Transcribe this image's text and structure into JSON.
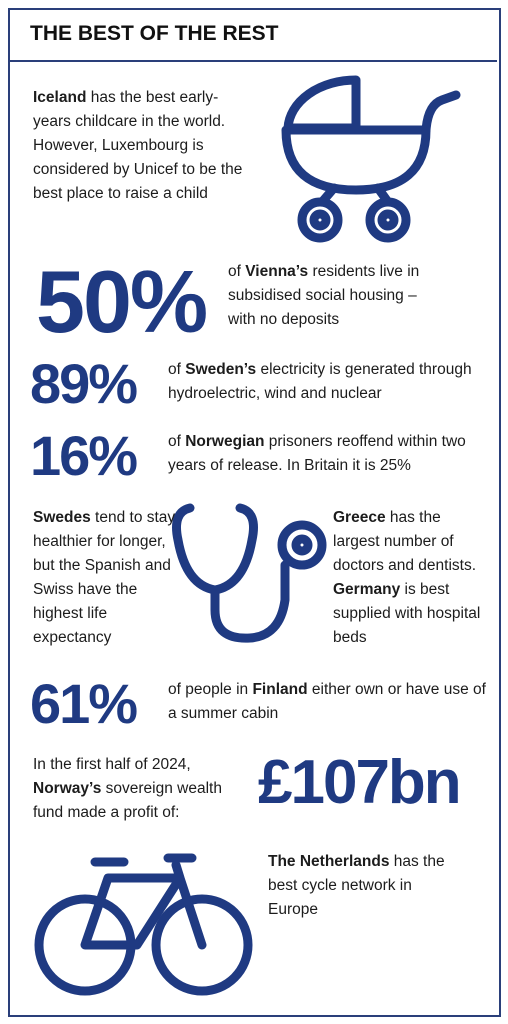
{
  "title": "THE BEST OF THE REST",
  "items": [
    {
      "segments": [
        {
          "text": "Iceland",
          "bold": true
        },
        {
          "text": " has the best early-years childcare in the world. However, Luxembourg is considered by Unicef to be the best place to raise a child",
          "bold": false
        }
      ]
    },
    {
      "figure": "50%",
      "segments": [
        {
          "text": "of ",
          "bold": false
        },
        {
          "text": "Vienna’s",
          "bold": true
        },
        {
          "text": " residents live in subsidised social housing – with no deposits",
          "bold": false
        }
      ]
    },
    {
      "figure": "89%",
      "segments": [
        {
          "text": "of ",
          "bold": false
        },
        {
          "text": "Sweden’s",
          "bold": true
        },
        {
          "text": " electricity is generated through hydroelectric, wind and nuclear",
          "bold": false
        }
      ]
    },
    {
      "figure": "16%",
      "segments": [
        {
          "text": "of ",
          "bold": false
        },
        {
          "text": "Norwegian",
          "bold": true
        },
        {
          "text": " prisoners reoffend within two years of release. In Britain it is 25%",
          "bold": false
        }
      ]
    },
    {
      "segments": [
        {
          "text": "Swedes",
          "bold": true
        },
        {
          "text": " tend to stay healthier for longer, but the Spanish and Swiss have the highest life expectancy",
          "bold": false
        }
      ]
    },
    {
      "segments": [
        {
          "text": "Greece",
          "bold": true
        },
        {
          "text": " has the largest number of doctors and dentists. ",
          "bold": false
        },
        {
          "text": "Germany",
          "bold": true
        },
        {
          "text": " is best supplied with hospital beds",
          "bold": false
        }
      ]
    },
    {
      "figure": "61%",
      "segments": [
        {
          "text": "of people in ",
          "bold": false
        },
        {
          "text": "Finland",
          "bold": true
        },
        {
          "text": " either own or have use of a summer cabin",
          "bold": false
        }
      ]
    },
    {
      "figure": "£107bn",
      "segments": [
        {
          "text": "In the first half of 2024, ",
          "bold": false
        },
        {
          "text": "Norway’s",
          "bold": true
        },
        {
          "text": " sovereign wealth fund made a profit of:",
          "bold": false
        }
      ]
    },
    {
      "segments": [
        {
          "text": "The Netherlands",
          "bold": true
        },
        {
          "text": " has the best cycle network in Europe",
          "bold": false
        }
      ]
    }
  ]
}
